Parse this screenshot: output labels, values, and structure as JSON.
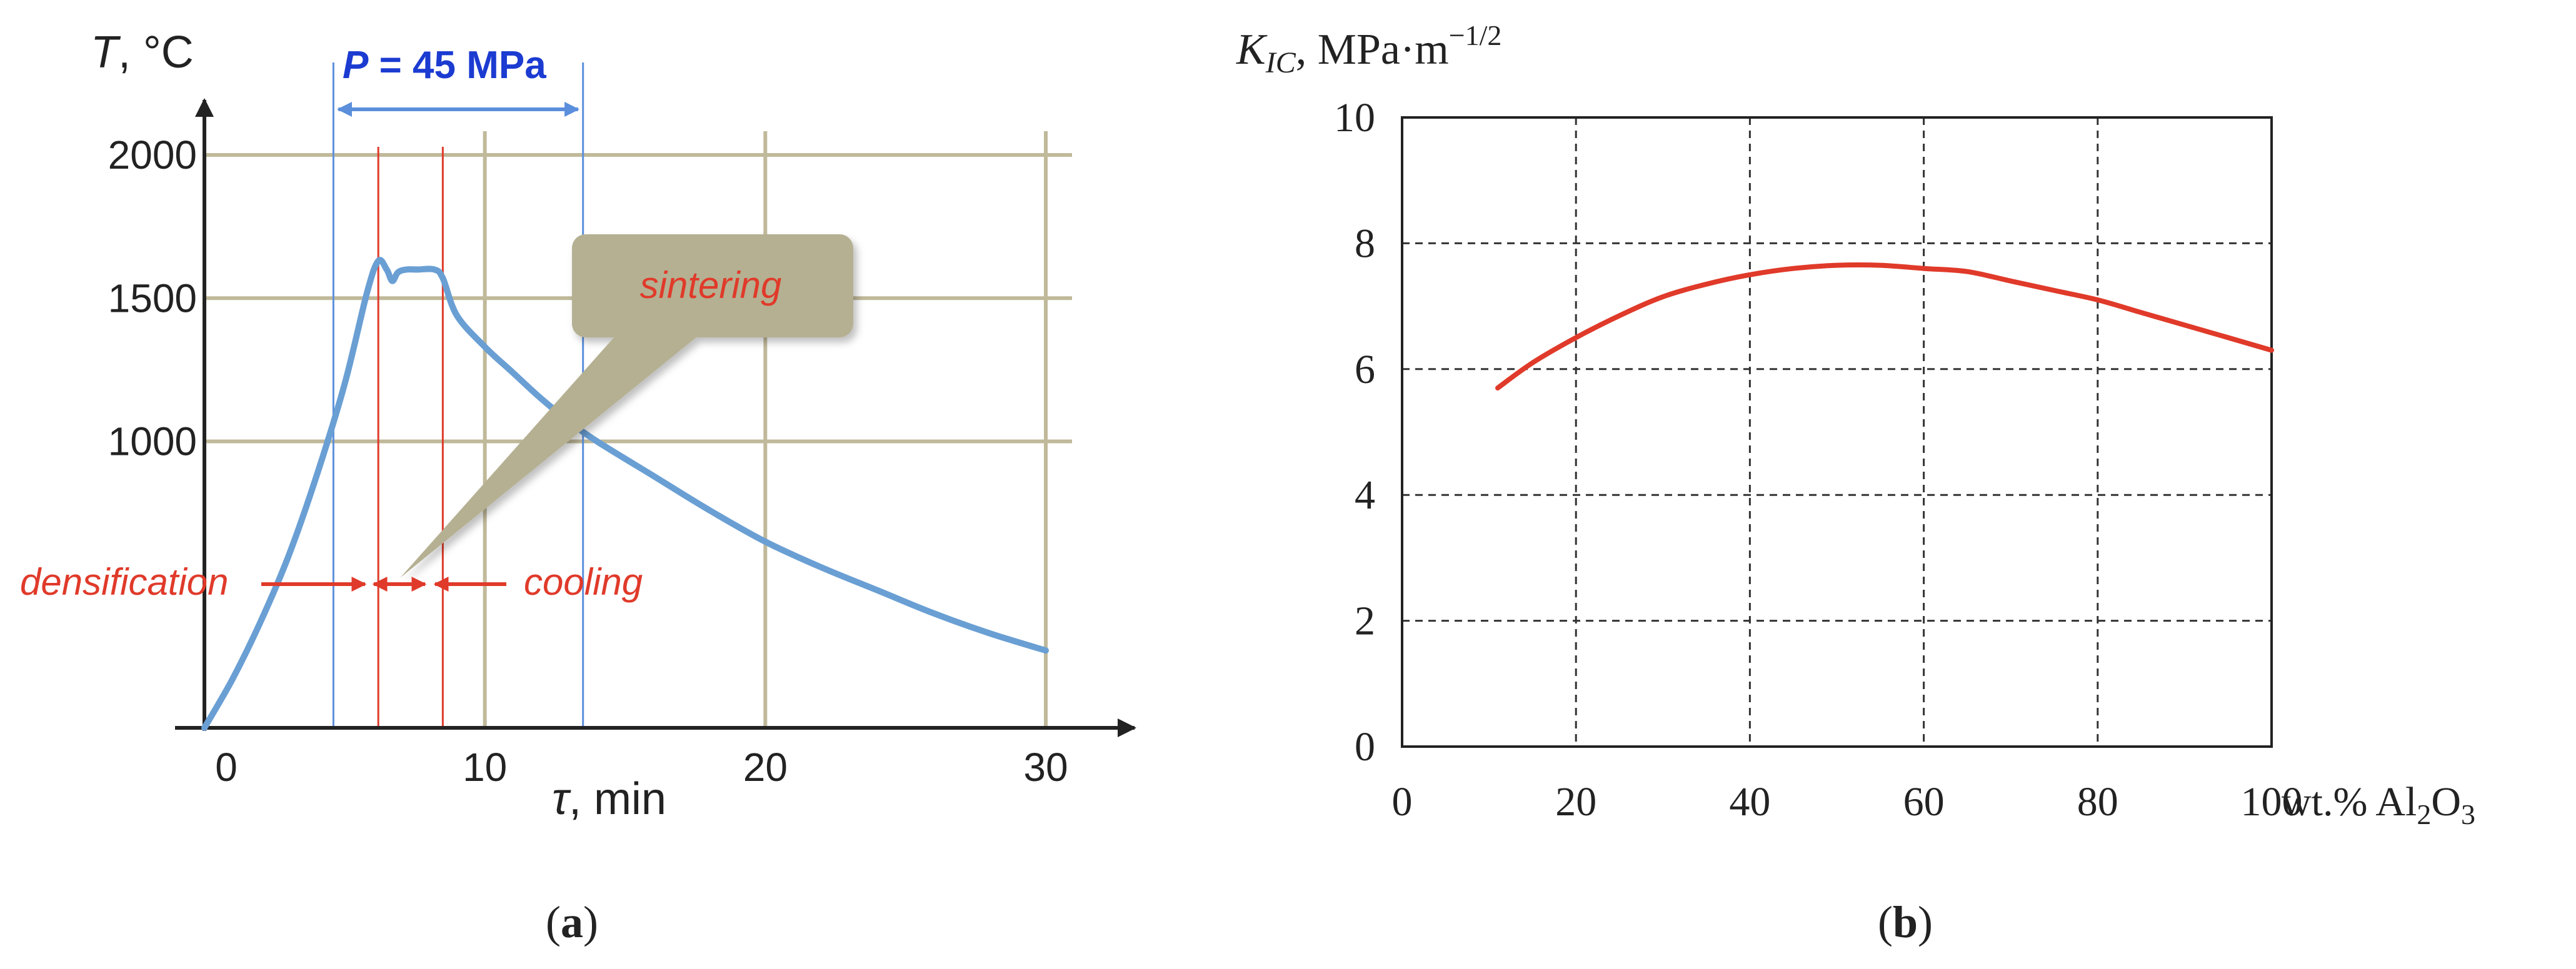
{
  "colors": {
    "temperature_curve": "#6a9fd4",
    "grid_a": "#c0b99a",
    "stage_lines": "#e03a2a",
    "pressure_lines": "#5b8fdc",
    "pressure_label": "#1b3bd1",
    "stage_labels": "#e03a2a",
    "callout_fill": "#b5b092",
    "kic_curve": "#e03a2a",
    "axes": "#222222"
  },
  "panels": [
    {
      "label": "a"
    },
    {
      "label": "b"
    }
  ],
  "panel_a": {
    "y_label_var": "T",
    "y_label_unit": ", °C",
    "x_label_var": "τ",
    "x_label_unit": ", min",
    "pressure_var": "P",
    "pressure_value": " = 45 MPa",
    "callout_text": "sintering",
    "densification_label": "densification",
    "cooling_label": "cooling"
  },
  "panel_b": {
    "y_label_main": "K",
    "y_label_sub": "IC",
    "y_label_unit": ", MPa·m",
    "y_label_exp": "−1/2",
    "x_label_prefix": "wt.% Al",
    "x_label_sub2": "2",
    "x_label_mid": "O",
    "x_label_sub3": "3"
  },
  "chart_data": [
    {
      "type": "line",
      "xlabel": "τ, min",
      "ylabel": "T, °C",
      "xlim": [
        0,
        30
      ],
      "ylim": [
        0,
        2000
      ],
      "x_ticks": [
        0,
        10,
        20,
        30
      ],
      "y_ticks": [
        1000,
        1500,
        2000
      ],
      "grid": true,
      "annotations": {
        "pressure": "P = 45 MPa",
        "pressure_interval": [
          4.6,
          13.5
        ],
        "stage_boundaries": [
          6.2,
          8.5
        ],
        "stage_labels": [
          "densification",
          "sintering",
          "cooling"
        ]
      },
      "series": [
        {
          "x": [
            0,
            1,
            2,
            3,
            4,
            5,
            5.8,
            6.2,
            6.5,
            6.7,
            6.9,
            7.2,
            7.6,
            8.2,
            8.5,
            9,
            10,
            11,
            12,
            13,
            14,
            16,
            18,
            20,
            22,
            24,
            26,
            28,
            30
          ],
          "y": [
            0,
            170,
            370,
            600,
            880,
            1200,
            1520,
            1630,
            1600,
            1560,
            1590,
            1600,
            1600,
            1600,
            1570,
            1440,
            1330,
            1240,
            1150,
            1070,
            1000,
            880,
            760,
            650,
            560,
            480,
            400,
            330,
            270
          ]
        }
      ]
    },
    {
      "type": "line",
      "xlabel": "wt.% Al2O3",
      "ylabel": "KIC, MPa·m−1/2",
      "xlim": [
        0,
        100
      ],
      "ylim": [
        0,
        10
      ],
      "x_ticks": [
        0,
        20,
        40,
        60,
        80,
        100
      ],
      "y_ticks": [
        0,
        2,
        4,
        6,
        8,
        10
      ],
      "grid": true,
      "series": [
        {
          "x": [
            11,
            15,
            20,
            25,
            30,
            35,
            40,
            45,
            50,
            55,
            60,
            65,
            70,
            75,
            80,
            85,
            90,
            95,
            100
          ],
          "y": [
            5.7,
            6.1,
            6.5,
            6.85,
            7.15,
            7.35,
            7.5,
            7.6,
            7.65,
            7.65,
            7.6,
            7.55,
            7.4,
            7.25,
            7.1,
            6.9,
            6.7,
            6.5,
            6.3
          ]
        }
      ]
    }
  ]
}
